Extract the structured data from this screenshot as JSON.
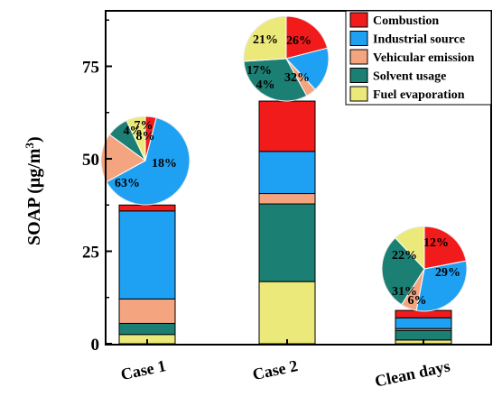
{
  "chart_data": {
    "type": "stacked-bar-with-pies",
    "ylabel_main": "SOAP (μg/m",
    "ylabel_sup": "3",
    "ylabel_end": ")",
    "ylim": [
      0,
      90
    ],
    "yticks": [
      "0",
      "25",
      "50",
      "75"
    ],
    "ytick_values": [
      0,
      25,
      50,
      75
    ],
    "categories": [
      "Case 1",
      "Case 2",
      "Clean days"
    ],
    "series": [
      {
        "name": "Fuel evaporation",
        "color": "#ece97b",
        "values": [
          2.5,
          16.8,
          1.0
        ]
      },
      {
        "name": "Solvent usage",
        "color": "#1b7f73",
        "values": [
          3.0,
          21.0,
          2.6
        ]
      },
      {
        "name": "Vehicular emission",
        "color": "#f4a57f",
        "values": [
          6.6,
          2.8,
          0.5
        ]
      },
      {
        "name": "Industrial source",
        "color": "#1ea1f2",
        "values": [
          23.8,
          11.4,
          2.9
        ]
      },
      {
        "name": "Combustion",
        "color": "#f21b1b",
        "values": [
          1.6,
          13.6,
          2.0
        ]
      }
    ],
    "legend_order": [
      "Combustion",
      "Industrial source",
      "Vehicular emission",
      "Solvent usage",
      "Fuel evaporation"
    ],
    "legend_position": "top-right",
    "pies": [
      {
        "category": "Case 1",
        "shares": {
          "Combustion": 4,
          "Industrial source": 63,
          "Vehicular emission": 18,
          "Solvent usage": 8,
          "Fuel evaporation": 7
        },
        "labels": [
          "4%",
          "63%",
          "18%",
          "8%",
          "7%"
        ]
      },
      {
        "category": "Case 2",
        "shares": {
          "Combustion": 21,
          "Industrial source": 17,
          "Vehicular emission": 4,
          "Solvent usage": 32,
          "Fuel evaporation": 26
        },
        "labels": [
          "21%",
          "17%",
          "4%",
          "32%",
          "26%"
        ]
      },
      {
        "category": "Clean days",
        "shares": {
          "Combustion": 22,
          "Industrial source": 31,
          "Vehicular emission": 6,
          "Solvent usage": 29,
          "Fuel evaporation": 12
        },
        "labels": [
          "22%",
          "31%",
          "6%",
          "29%",
          "12%"
        ]
      }
    ]
  }
}
